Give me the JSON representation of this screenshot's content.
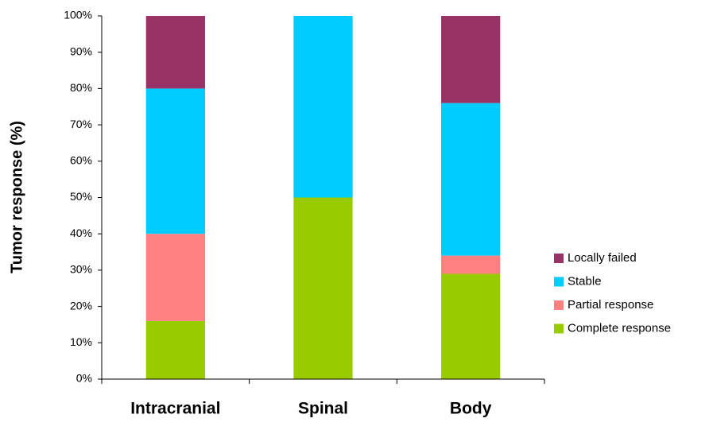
{
  "chart_data": {
    "type": "stacked_bar",
    "y_label": "Tumor response (%)",
    "categories": [
      "Intracranial",
      "Spinal",
      "Body"
    ],
    "series": [
      {
        "name": "Complete response",
        "color": "#99cc00",
        "values": [
          16,
          50,
          29
        ]
      },
      {
        "name": "Partial response",
        "color": "#ff8080",
        "values": [
          24,
          0,
          5
        ]
      },
      {
        "name": "Stable",
        "color": "#00ccff",
        "values": [
          40,
          50,
          42
        ]
      },
      {
        "name": "Locally failed",
        "color": "#993366",
        "values": [
          20,
          0,
          24
        ]
      }
    ],
    "ylim": [
      0,
      100
    ],
    "yticks": [
      {
        "value": 0,
        "label": "0%"
      },
      {
        "value": 10,
        "label": "10%"
      },
      {
        "value": 20,
        "label": "20%"
      },
      {
        "value": 30,
        "label": "30%"
      },
      {
        "value": 40,
        "label": "40%"
      },
      {
        "value": 50,
        "label": "50%"
      },
      {
        "value": 60,
        "label": "60%"
      },
      {
        "value": 70,
        "label": "70%"
      },
      {
        "value": 80,
        "label": "80%"
      },
      {
        "value": 90,
        "label": "90%"
      },
      {
        "value": 100,
        "label": "100%"
      }
    ],
    "grid": false,
    "legend": "right"
  }
}
